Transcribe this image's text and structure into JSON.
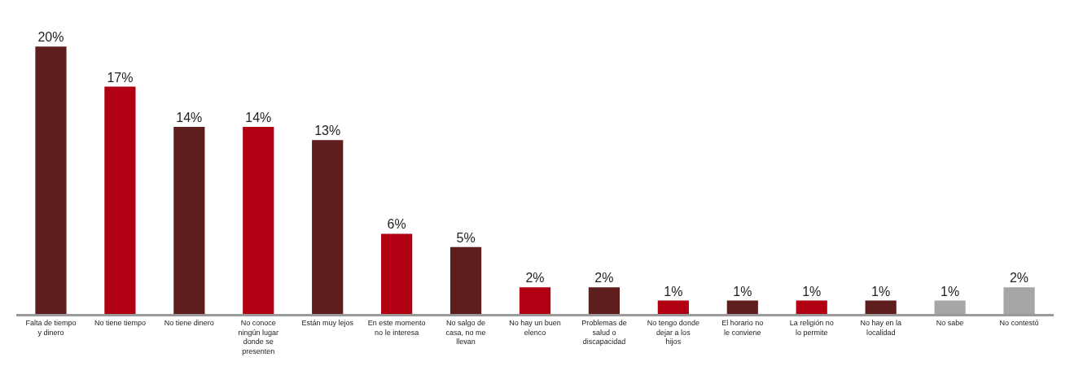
{
  "chart_data": {
    "type": "bar",
    "categories": [
      "Falta de tiempo y dinero",
      "No tiene tiempo",
      "No tiene dinero",
      "No conoce ningún lugar donde se presenten",
      "Están muy lejos",
      "En este momento no le interesa",
      "No salgo de casa, no me llevan",
      "No hay un buen elenco",
      "Problemas de salud o discapacidad",
      "No tengo donde dejar a los hijos",
      "El horario no le conviene",
      "La religión no lo permite",
      "No hay en la localidad",
      "No sabe",
      "No contestó"
    ],
    "values": [
      20,
      17,
      14,
      14,
      13,
      6,
      5,
      2,
      2,
      1,
      1,
      1,
      1,
      1,
      2
    ],
    "value_labels": [
      "20%",
      "17%",
      "14%",
      "14%",
      "13%",
      "6%",
      "5%",
      "2%",
      "2%",
      "1%",
      "1%",
      "1%",
      "1%",
      "1%",
      "2%"
    ],
    "colors": [
      "#5e1e1e",
      "#b00012",
      "#5e1e1e",
      "#b00012",
      "#5e1e1e",
      "#b00012",
      "#5e1e1e",
      "#b00012",
      "#5e1e1e",
      "#b00012",
      "#5e1e1e",
      "#b00012",
      "#5e1e1e",
      "#a6a6a6",
      "#a6a6a6"
    ]
  }
}
